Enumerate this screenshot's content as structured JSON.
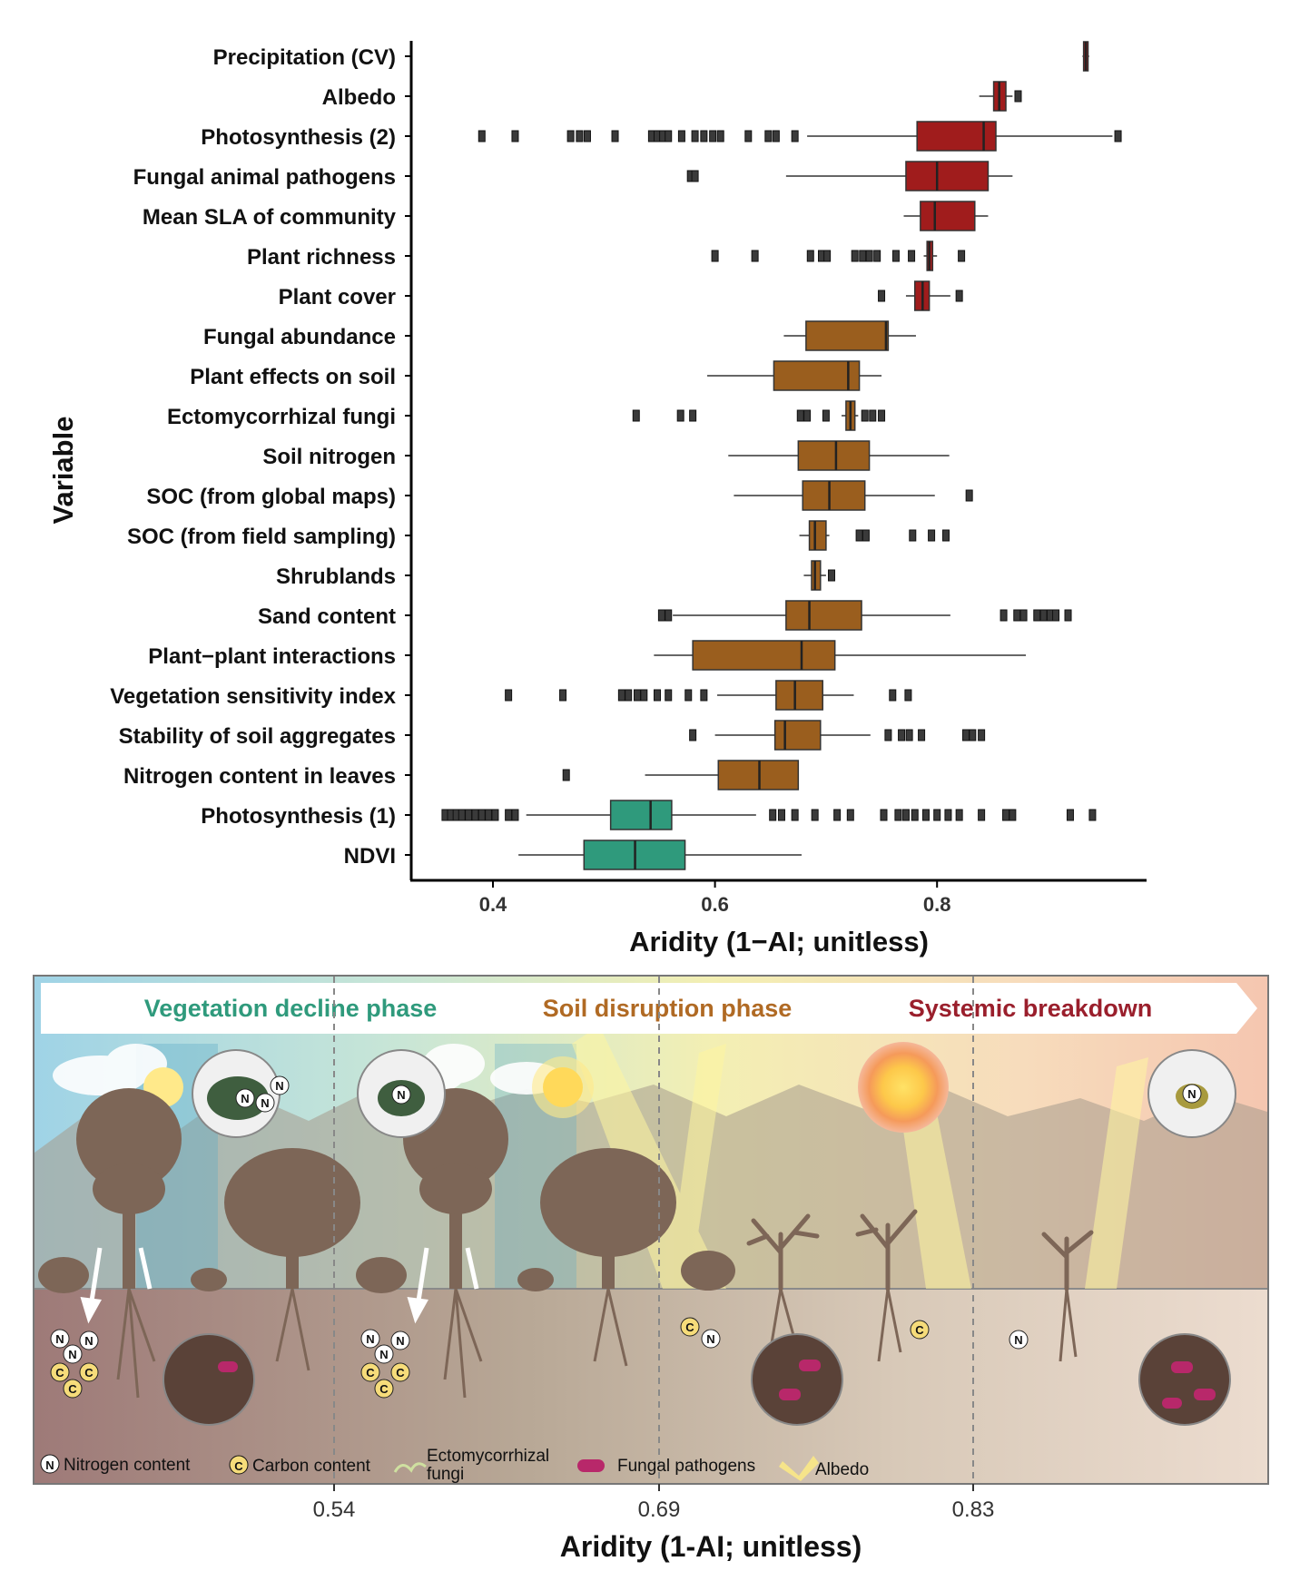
{
  "chart_data": {
    "type": "box",
    "xlabel": "Aridity (1−AI; unitless)",
    "ylabel": "Variable",
    "xlim": [
      0.35,
      0.96
    ],
    "xticks": [
      "0.4",
      "0.6",
      "0.8"
    ],
    "xtick_values": [
      0.4,
      0.6,
      0.8
    ],
    "phase_colors": {
      "vegetation": "#2f9a7c",
      "soil": "#9a5e1e",
      "systemic": "#a01c1c"
    },
    "variables": [
      {
        "name": "Precipitation (CV)",
        "phase": "systemic",
        "q1": 0.932,
        "median": 0.934,
        "q3": 0.936,
        "wlo": 0.931,
        "whi": 0.937,
        "outliers": []
      },
      {
        "name": "Albedo",
        "phase": "systemic",
        "q1": 0.851,
        "median": 0.856,
        "q3": 0.862,
        "wlo": 0.838,
        "whi": 0.868,
        "outliers": [
          0.873
        ]
      },
      {
        "name": "Photosynthesis (2)",
        "phase": "systemic",
        "q1": 0.782,
        "median": 0.842,
        "q3": 0.853,
        "wlo": 0.683,
        "whi": 0.958,
        "outliers": [
          0.39,
          0.42,
          0.47,
          0.478,
          0.485,
          0.51,
          0.543,
          0.548,
          0.553,
          0.558,
          0.57,
          0.582,
          0.59,
          0.598,
          0.605,
          0.63,
          0.648,
          0.655,
          0.672,
          0.963
        ]
      },
      {
        "name": "Fungal animal pathogens",
        "phase": "systemic",
        "q1": 0.772,
        "median": 0.8,
        "q3": 0.846,
        "wlo": 0.664,
        "whi": 0.868,
        "outliers": [
          0.578,
          0.582
        ]
      },
      {
        "name": "Mean SLA of community",
        "phase": "systemic",
        "q1": 0.785,
        "median": 0.798,
        "q3": 0.834,
        "wlo": 0.77,
        "whi": 0.846,
        "outliers": []
      },
      {
        "name": "Plant richness",
        "phase": "systemic",
        "q1": 0.791,
        "median": 0.793,
        "q3": 0.796,
        "wlo": 0.788,
        "whi": 0.8,
        "outliers": [
          0.6,
          0.636,
          0.686,
          0.696,
          0.701,
          0.726,
          0.733,
          0.739,
          0.746,
          0.763,
          0.777,
          0.822
        ]
      },
      {
        "name": "Plant cover",
        "phase": "systemic",
        "q1": 0.78,
        "median": 0.787,
        "q3": 0.793,
        "wlo": 0.772,
        "whi": 0.812,
        "outliers": [
          0.75,
          0.82
        ]
      },
      {
        "name": "Fungal abundance",
        "phase": "soil",
        "q1": 0.682,
        "median": 0.754,
        "q3": 0.756,
        "wlo": 0.662,
        "whi": 0.781,
        "outliers": []
      },
      {
        "name": "Plant effects on soil",
        "phase": "soil",
        "q1": 0.653,
        "median": 0.72,
        "q3": 0.73,
        "wlo": 0.593,
        "whi": 0.75,
        "outliers": []
      },
      {
        "name": "Ectomycorrhizal fungi",
        "phase": "soil",
        "q1": 0.718,
        "median": 0.722,
        "q3": 0.726,
        "wlo": 0.714,
        "whi": 0.729,
        "outliers": [
          0.529,
          0.569,
          0.58,
          0.677,
          0.683,
          0.7,
          0.735,
          0.742,
          0.75
        ]
      },
      {
        "name": "Soil nitrogen",
        "phase": "soil",
        "q1": 0.675,
        "median": 0.709,
        "q3": 0.739,
        "wlo": 0.612,
        "whi": 0.811,
        "outliers": []
      },
      {
        "name": "SOC (from global maps)",
        "phase": "soil",
        "q1": 0.679,
        "median": 0.703,
        "q3": 0.735,
        "wlo": 0.617,
        "whi": 0.798,
        "outliers": [
          0.829
        ]
      },
      {
        "name": "SOC (from field sampling)",
        "phase": "soil",
        "q1": 0.685,
        "median": 0.69,
        "q3": 0.7,
        "wlo": 0.676,
        "whi": 0.703,
        "outliers": [
          0.73,
          0.736,
          0.778,
          0.795,
          0.808
        ]
      },
      {
        "name": "Shrublands",
        "phase": "soil",
        "q1": 0.687,
        "median": 0.69,
        "q3": 0.695,
        "wlo": 0.68,
        "whi": 0.7,
        "outliers": [
          0.705
        ]
      },
      {
        "name": "Sand content",
        "phase": "soil",
        "q1": 0.664,
        "median": 0.685,
        "q3": 0.732,
        "wlo": 0.562,
        "whi": 0.812,
        "outliers": [
          0.552,
          0.558,
          0.86,
          0.872,
          0.878,
          0.89,
          0.896,
          0.902,
          0.907,
          0.918
        ]
      },
      {
        "name": "Plant−plant interactions",
        "phase": "soil",
        "q1": 0.58,
        "median": 0.678,
        "q3": 0.708,
        "wlo": 0.545,
        "whi": 0.88,
        "outliers": []
      },
      {
        "name": "Vegetation sensitivity index",
        "phase": "soil",
        "q1": 0.655,
        "median": 0.672,
        "q3": 0.697,
        "wlo": 0.602,
        "whi": 0.725,
        "outliers": [
          0.414,
          0.463,
          0.516,
          0.522,
          0.53,
          0.536,
          0.548,
          0.558,
          0.576,
          0.59,
          0.76,
          0.774
        ]
      },
      {
        "name": "Stability of soil aggregates",
        "phase": "soil",
        "q1": 0.654,
        "median": 0.663,
        "q3": 0.695,
        "wlo": 0.6,
        "whi": 0.74,
        "outliers": [
          0.58,
          0.756,
          0.768,
          0.775,
          0.786,
          0.826,
          0.832,
          0.84
        ]
      },
      {
        "name": "Nitrogen content in leaves",
        "phase": "soil",
        "q1": 0.603,
        "median": 0.64,
        "q3": 0.675,
        "wlo": 0.537,
        "whi": 0.675,
        "outliers": [
          0.466
        ]
      },
      {
        "name": "Photosynthesis (1)",
        "phase": "vegetation",
        "q1": 0.506,
        "median": 0.542,
        "q3": 0.561,
        "wlo": 0.43,
        "whi": 0.637,
        "outliers": [
          0.357,
          0.362,
          0.367,
          0.372,
          0.378,
          0.384,
          0.39,
          0.396,
          0.402,
          0.414,
          0.42,
          0.652,
          0.66,
          0.672,
          0.69,
          0.71,
          0.722,
          0.752,
          0.765,
          0.772,
          0.78,
          0.79,
          0.8,
          0.81,
          0.82,
          0.84,
          0.862,
          0.868,
          0.92,
          0.94
        ]
      },
      {
        "name": "NDVI",
        "phase": "vegetation",
        "q1": 0.482,
        "median": 0.528,
        "q3": 0.573,
        "wlo": 0.423,
        "whi": 0.678,
        "outliers": []
      }
    ]
  },
  "panel": {
    "phases": [
      {
        "label": "Vegetation decline phase",
        "color": "#2f9a7c"
      },
      {
        "label": "Soil disruption phase",
        "color": "#b06a24"
      },
      {
        "label": "Systemic breakdown",
        "color": "#9a1f2c"
      }
    ],
    "thresholds": [
      "0.54",
      "0.69",
      "0.83"
    ],
    "xlabel": "Aridity (1-AI; unitless)",
    "legend": {
      "nitrogen": "Nitrogen content",
      "carbon": "Carbon content",
      "ecto_line1": "Ectomycorrhizal",
      "ecto_line2": "fungi",
      "pathogens": "Fungal pathogens",
      "albedo": "Albedo"
    },
    "badges": {
      "n": "N",
      "c": "C"
    }
  }
}
